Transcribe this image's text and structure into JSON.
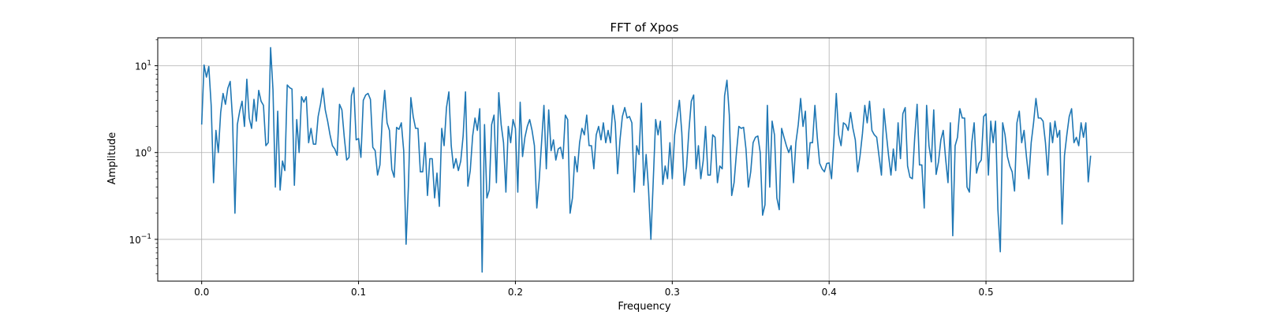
{
  "chart_data": {
    "type": "line",
    "title": "FFT of Xpos",
    "xlabel": "Frequency",
    "ylabel": "Amplitude",
    "xscale": "linear",
    "yscale": "log",
    "xlim": [
      -0.028,
      0.594
    ],
    "ylim": [
      0.033,
      21
    ],
    "grid": true,
    "line_color": "#1f77b4",
    "x_ticks": [
      {
        "value": 0.0,
        "label": "0.0"
      },
      {
        "value": 0.1,
        "label": "0.1"
      },
      {
        "value": 0.2,
        "label": "0.2"
      },
      {
        "value": 0.3,
        "label": "0.3"
      },
      {
        "value": 0.4,
        "label": "0.4"
      },
      {
        "value": 0.5,
        "label": "0.5"
      }
    ],
    "y_ticks": [
      {
        "value": 0.1,
        "base": "10",
        "exp": "−1"
      },
      {
        "value": 1,
        "base": "10",
        "exp": "0"
      },
      {
        "value": 10,
        "base": "10",
        "exp": "1"
      }
    ],
    "x_start": 0.0,
    "x_end": 0.5667,
    "values": [
      2.1,
      10.2,
      7.4,
      9.8,
      3.5,
      0.45,
      1.8,
      1.0,
      2.9,
      4.8,
      3.6,
      5.5,
      6.6,
      2.4,
      0.2,
      2.1,
      3.0,
      3.9,
      2.0,
      7.0,
      2.5,
      1.9,
      4.1,
      2.3,
      5.2,
      3.9,
      3.5,
      1.2,
      1.3,
      16.2,
      5.3,
      0.4,
      3.0,
      0.37,
      0.8,
      0.62,
      6.0,
      5.6,
      5.4,
      0.42,
      2.4,
      1.0,
      4.4,
      3.8,
      4.4,
      1.3,
      1.9,
      1.25,
      1.25,
      2.6,
      3.6,
      5.5,
      3.1,
      2.3,
      1.6,
      1.2,
      1.1,
      0.93,
      3.6,
      3.1,
      1.5,
      0.82,
      0.88,
      4.5,
      5.6,
      1.4,
      1.45,
      0.88,
      4.0,
      4.6,
      4.8,
      4.1,
      1.15,
      1.05,
      0.55,
      0.72,
      2.5,
      5.2,
      2.2,
      1.8,
      0.64,
      0.52,
      1.95,
      1.85,
      2.2,
      1.05,
      0.088,
      0.42,
      4.3,
      2.6,
      1.9,
      1.9,
      0.6,
      0.6,
      1.3,
      0.32,
      0.85,
      0.85,
      0.3,
      0.58,
      0.24,
      1.9,
      1.2,
      3.3,
      5.0,
      1.2,
      0.66,
      0.85,
      0.62,
      0.8,
      1.55,
      5.0,
      0.41,
      0.62,
      1.55,
      2.5,
      1.8,
      3.2,
      0.042,
      2.1,
      0.3,
      0.37,
      2.1,
      2.7,
      0.45,
      4.9,
      2.1,
      1.3,
      0.35,
      2.0,
      1.3,
      2.4,
      1.9,
      0.35,
      3.8,
      0.9,
      1.5,
      2.0,
      2.4,
      1.8,
      1.2,
      0.23,
      0.48,
      1.3,
      3.5,
      0.65,
      3.1,
      1.05,
      1.4,
      0.82,
      1.1,
      1.15,
      0.85,
      2.7,
      2.4,
      0.2,
      0.3,
      0.9,
      0.6,
      1.3,
      1.9,
      1.6,
      2.7,
      1.2,
      1.2,
      0.65,
      1.6,
      2.0,
      1.4,
      2.2,
      1.3,
      1.8,
      1.3,
      3.5,
      2.2,
      0.57,
      1.4,
      2.6,
      3.3,
      2.5,
      2.6,
      2.2,
      0.35,
      1.2,
      0.95,
      3.7,
      0.42,
      0.95,
      0.38,
      0.1,
      0.48,
      2.4,
      1.6,
      2.3,
      0.43,
      0.7,
      0.5,
      1.3,
      0.5,
      1.6,
      2.5,
      4.0,
      1.7,
      0.42,
      0.68,
      1.8,
      3.9,
      4.6,
      0.65,
      1.2,
      0.5,
      0.8,
      2.0,
      0.55,
      0.55,
      1.6,
      1.5,
      0.45,
      0.7,
      0.65,
      4.5,
      6.8,
      2.7,
      0.32,
      0.45,
      1.0,
      2.0,
      1.9,
      1.95,
      1.1,
      0.4,
      0.6,
      1.3,
      1.5,
      1.55,
      1.0,
      0.19,
      0.25,
      3.5,
      0.4,
      2.3,
      1.6,
      0.3,
      0.22,
      1.9,
      1.5,
      1.2,
      1.0,
      1.2,
      0.45,
      1.3,
      2.1,
      4.2,
      2.0,
      3.0,
      0.65,
      1.3,
      1.3,
      3.5,
      1.5,
      0.75,
      0.65,
      0.6,
      0.75,
      0.76,
      0.5,
      1.4,
      4.8,
      1.6,
      1.2,
      2.2,
      2.1,
      1.8,
      2.9,
      1.9,
      1.4,
      0.6,
      0.92,
      1.65,
      3.5,
      2.2,
      3.9,
      1.8,
      1.6,
      1.5,
      0.9,
      0.55,
      3.2,
      1.7,
      0.92,
      0.55,
      1.1,
      0.62,
      2.2,
      0.85,
      2.8,
      3.3,
      0.7,
      0.52,
      0.5,
      1.5,
      3.6,
      0.72,
      0.72,
      0.23,
      3.5,
      1.2,
      0.78,
      3.1,
      0.56,
      0.78,
      1.4,
      1.8,
      0.85,
      0.45,
      2.2,
      0.11,
      1.2,
      1.5,
      3.2,
      2.5,
      2.5,
      0.4,
      0.35,
      1.3,
      2.2,
      0.58,
      0.75,
      0.82,
      2.6,
      2.8,
      0.55,
      2.3,
      1.3,
      2.3,
      0.22,
      0.072,
      2.2,
      1.6,
      0.9,
      0.7,
      0.6,
      0.36,
      2.2,
      3.0,
      1.3,
      1.8,
      0.9,
      0.5,
      1.3,
      2.2,
      4.2,
      2.5,
      2.5,
      2.3,
      1.3,
      0.55,
      2.2,
      1.3,
      2.3,
      1.5,
      1.8,
      0.15,
      0.92,
      1.6,
      2.6,
      3.2,
      1.3,
      1.5,
      1.2,
      2.2,
      1.5,
      2.2,
      0.46,
      0.92
    ]
  }
}
